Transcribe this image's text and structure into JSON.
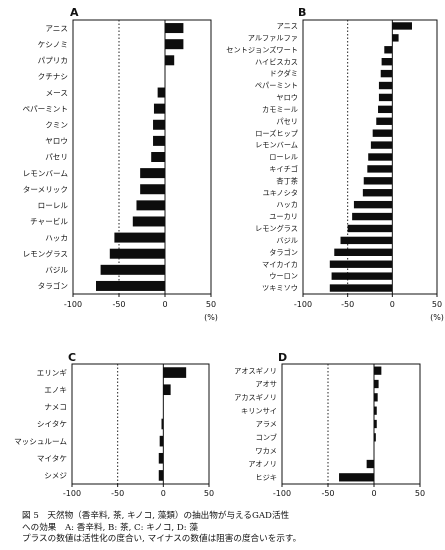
{
  "chart_data": [
    {
      "type": "bar",
      "orientation": "horizontal",
      "panel_label": "A",
      "categories": [
        "アニス",
        "ケシノミ",
        "パプリカ",
        "クチナシ",
        "メース",
        "ペパーミント",
        "クミン",
        "ヤロウ",
        "パセリ",
        "レモンバーム",
        "ターメリック",
        "ローレル",
        "チャービル",
        "ハッカ",
        "レモングラス",
        "バジル",
        "タラゴン"
      ],
      "values": [
        20,
        20,
        10,
        0,
        -8,
        -12,
        -13,
        -13,
        -15,
        -27,
        -27,
        -31,
        -35,
        -55,
        -60,
        -70,
        -75
      ],
      "xlim": [
        -100,
        50
      ],
      "xticks": [
        "-100",
        "-50",
        "0",
        "50"
      ],
      "xlabel": "(%)",
      "reference_line_x": -50
    },
    {
      "type": "bar",
      "orientation": "horizontal",
      "panel_label": "B",
      "categories": [
        "アニス",
        "アルファルファ",
        "セントジョンズワート",
        "ハイビスカス",
        "ドクダミ",
        "ペパーミント",
        "ヤロウ",
        "カモミール",
        "パセリ",
        "ローズヒップ",
        "レモンバーム",
        "ローレル",
        "キイチゴ",
        "杏丁茶",
        "ユキノシタ",
        "ハッカ",
        "ユーカリ",
        "レモングラス",
        "バジル",
        "タラゴン",
        "マイカイカ",
        "ウーロン",
        "ツキミソウ"
      ],
      "values": [
        22,
        7,
        -9,
        -12,
        -13,
        -15,
        -15,
        -16,
        -18,
        -22,
        -24,
        -27,
        -28,
        -32,
        -33,
        -43,
        -45,
        -50,
        -58,
        -65,
        -70,
        -68,
        -70
      ],
      "xlim": [
        -100,
        50
      ],
      "xticks": [
        "-100",
        "-50",
        "0",
        "50"
      ],
      "xlabel": "(%)",
      "reference_line_x": -50
    },
    {
      "type": "bar",
      "orientation": "horizontal",
      "panel_label": "C",
      "categories": [
        "エリンギ",
        "エノキ",
        "ナメコ",
        "シイタケ",
        "マッシュルーム",
        "マイタケ",
        "シメジ"
      ],
      "values": [
        25,
        8,
        0,
        -2,
        -4,
        -5,
        -5
      ],
      "xlim": [
        -100,
        50
      ],
      "xticks": [
        "-100",
        "-50",
        "0",
        "50"
      ],
      "reference_line_x": -50
    },
    {
      "type": "bar",
      "orientation": "horizontal",
      "panel_label": "D",
      "categories": [
        "アオスギノリ",
        "アオサ",
        "アカスギノリ",
        "キリンサイ",
        "アラメ",
        "コンブ",
        "ワカメ",
        "アオノリ",
        "ヒジキ"
      ],
      "values": [
        8,
        5,
        4,
        3,
        3,
        2,
        0,
        -8,
        -38
      ],
      "xlim": [
        -100,
        50
      ],
      "xticks": [
        "-100",
        "-50",
        "0",
        "50"
      ],
      "reference_line_x": -50
    }
  ],
  "caption": {
    "line1": "図 5　天然物（香辛料, 茶, キノコ, 藻類）の抽出物が与えるGAD活性",
    "line2": "への効果　A: 香辛料, B: 茶, C: キノコ, D: 藻",
    "line3": "プラスの数値は活性化の度合い, マイナスの数値は阻害の度合いを示す。"
  }
}
